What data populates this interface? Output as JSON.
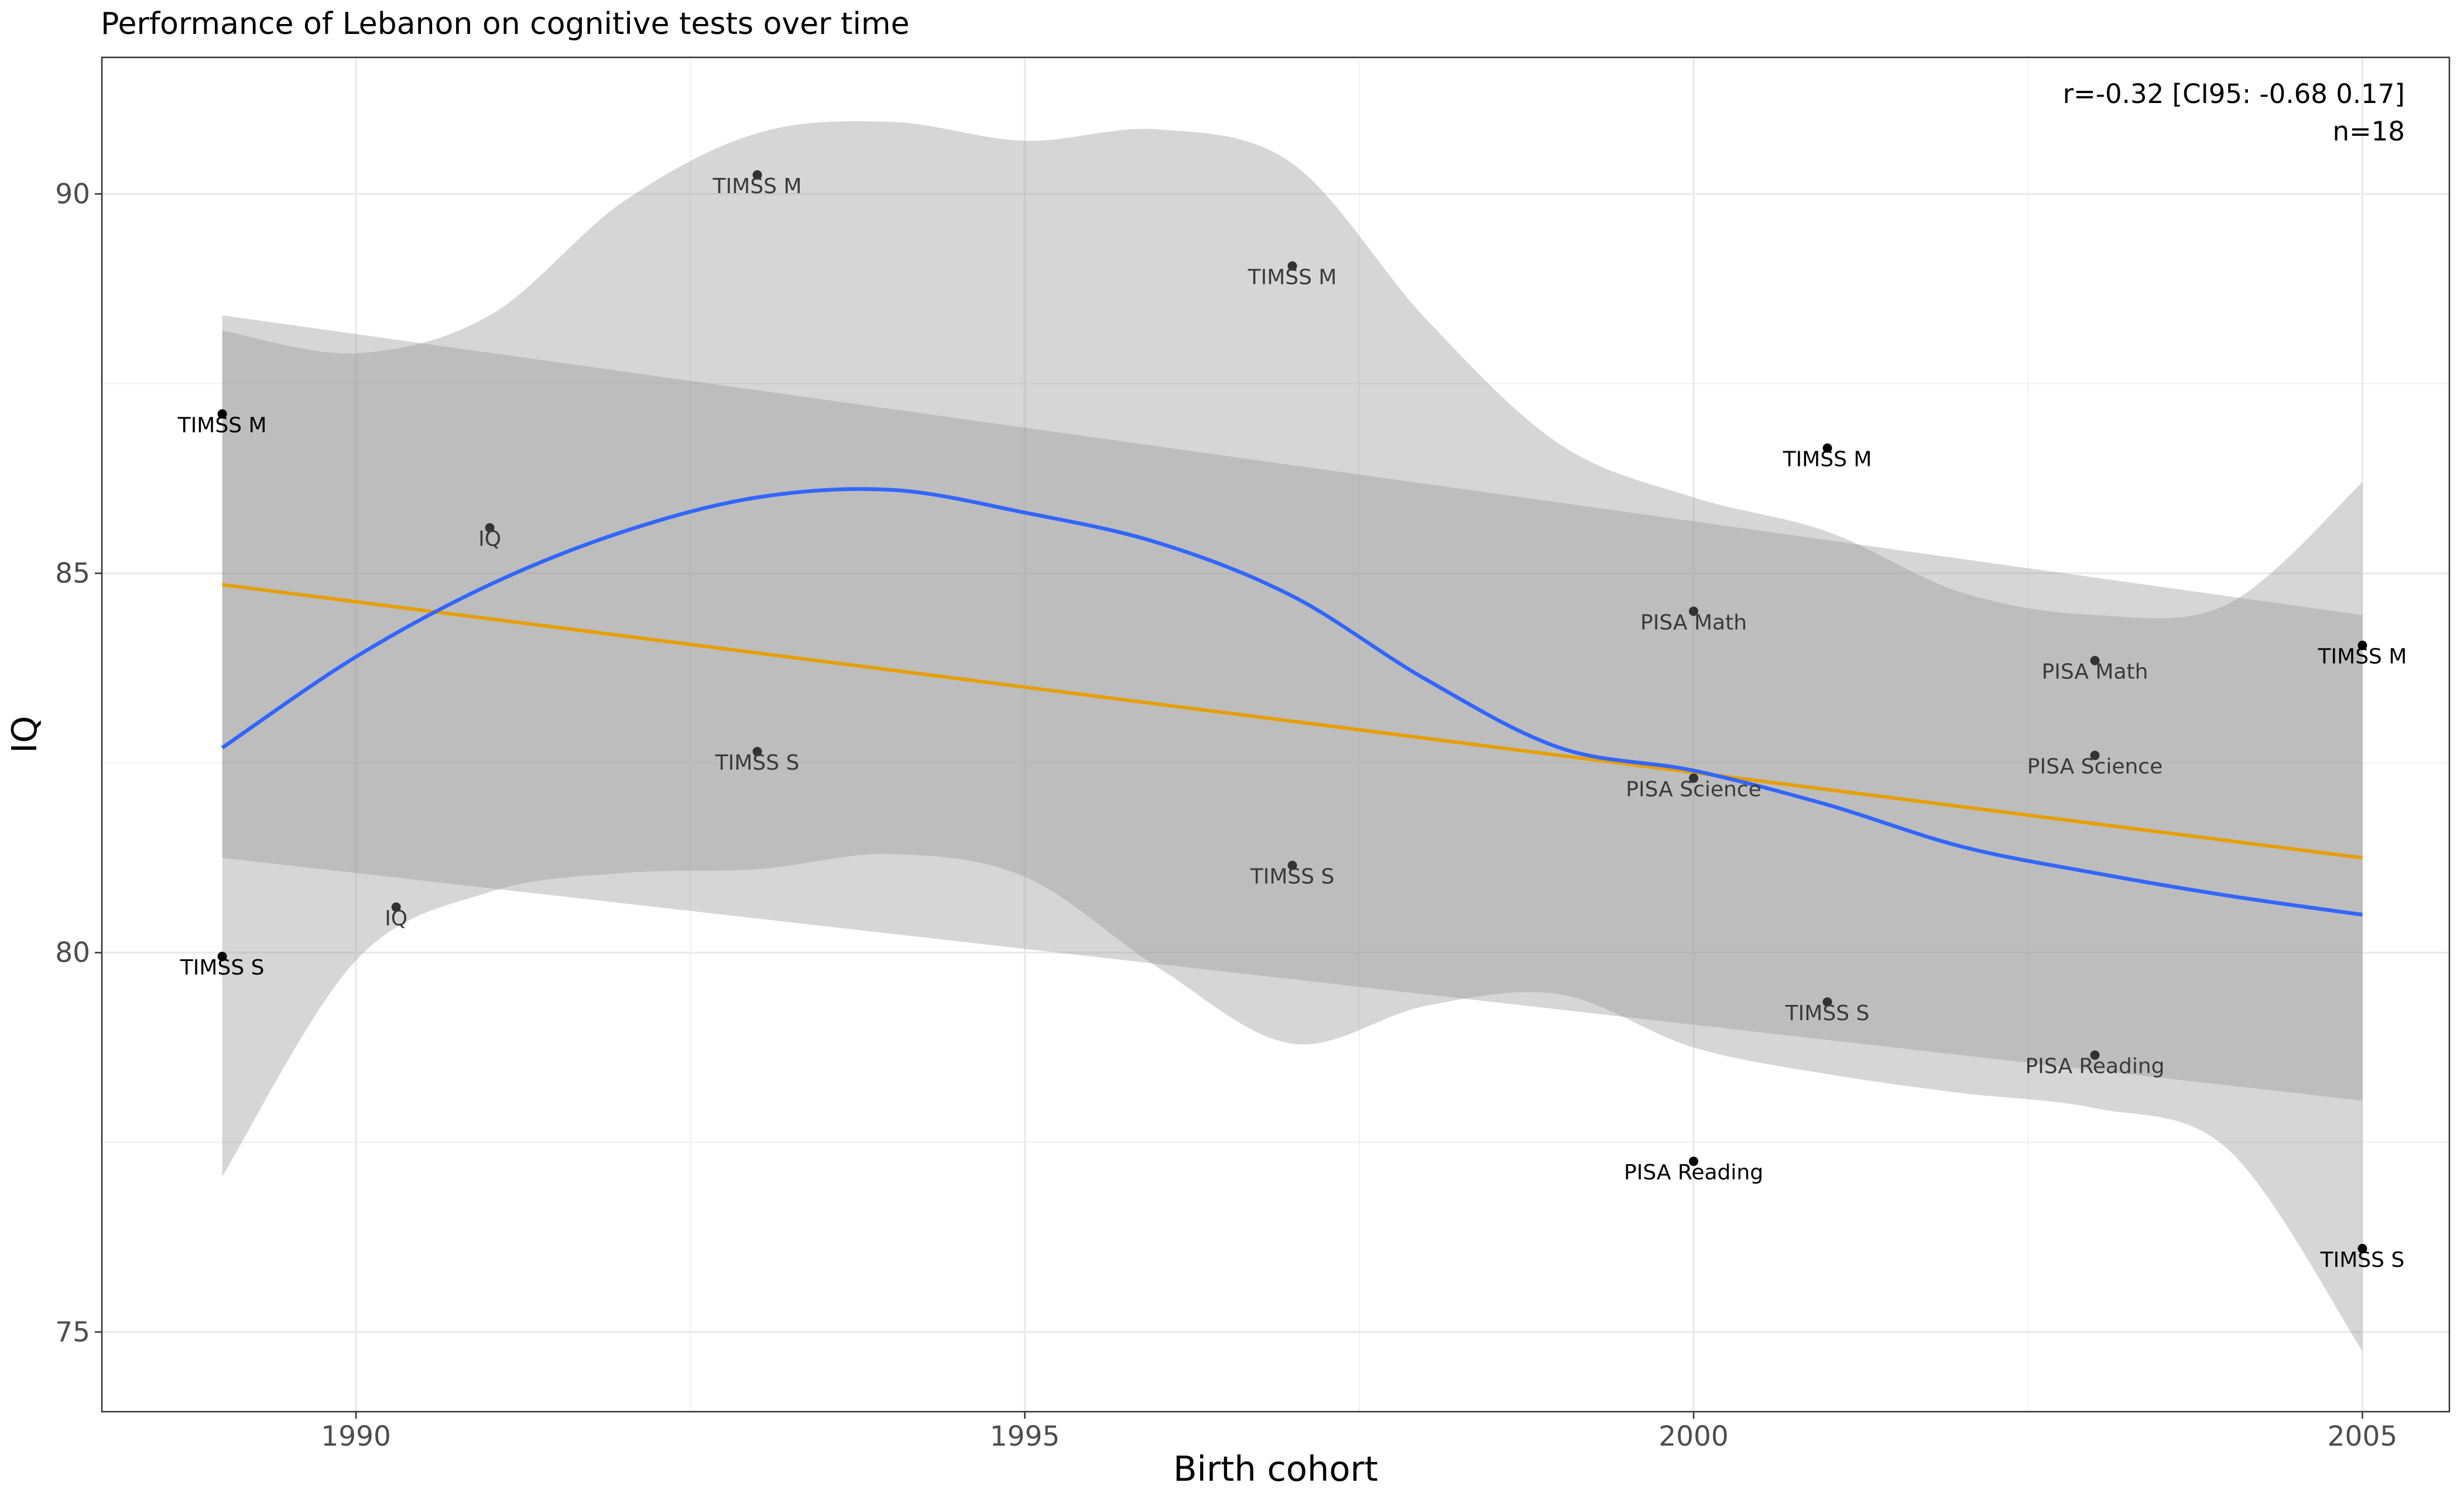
{
  "chart_data": {
    "type": "scatter",
    "title": "Performance of Lebanon on cognitive tests over time",
    "xlabel": "Birth cohort",
    "ylabel": "IQ",
    "xlim": [
      1988.1,
      2005.65
    ],
    "ylim": [
      73.95,
      91.8
    ],
    "xticks": [
      1990,
      1995,
      2000,
      2005
    ],
    "yticks": [
      75,
      80,
      85,
      90
    ],
    "grid": true,
    "annotation": [
      "r=-0.32 [CI95: -0.68 0.17]",
      "n=18"
    ],
    "points": [
      {
        "x": 1989,
        "y": 87.1,
        "label": "TIMSS M",
        "shade": "dark"
      },
      {
        "x": 1989,
        "y": 79.95,
        "label": "TIMSS S",
        "shade": "dark"
      },
      {
        "x": 1990.3,
        "y": 80.6,
        "label": "IQ",
        "shade": "mid"
      },
      {
        "x": 1991,
        "y": 85.6,
        "label": "IQ",
        "shade": "mid"
      },
      {
        "x": 1993,
        "y": 90.25,
        "label": "TIMSS M",
        "shade": "mid"
      },
      {
        "x": 1993,
        "y": 82.65,
        "label": "TIMSS S",
        "shade": "mid"
      },
      {
        "x": 1997,
        "y": 89.05,
        "label": "TIMSS M",
        "shade": "mid"
      },
      {
        "x": 1997,
        "y": 81.15,
        "label": "TIMSS S",
        "shade": "mid"
      },
      {
        "x": 2000,
        "y": 84.5,
        "label": "PISA Math",
        "shade": "mid"
      },
      {
        "x": 2000,
        "y": 82.3,
        "label": "PISA Science",
        "shade": "mid"
      },
      {
        "x": 2000,
        "y": 77.25,
        "label": "PISA Reading",
        "shade": "dark"
      },
      {
        "x": 2001,
        "y": 86.65,
        "label": "TIMSS M",
        "shade": "dark"
      },
      {
        "x": 2001,
        "y": 79.35,
        "label": "TIMSS S",
        "shade": "mid"
      },
      {
        "x": 2003,
        "y": 83.85,
        "label": "PISA Math",
        "shade": "mid"
      },
      {
        "x": 2003,
        "y": 82.6,
        "label": "PISA Science",
        "shade": "mid"
      },
      {
        "x": 2003,
        "y": 78.65,
        "label": "PISA Reading",
        "shade": "mid"
      },
      {
        "x": 2005,
        "y": 84.05,
        "label": "TIMSS M",
        "shade": "dark"
      },
      {
        "x": 2005,
        "y": 76.1,
        "label": "TIMSS S",
        "shade": "dark"
      }
    ],
    "linear_fit": {
      "color": "#E69F00",
      "x": [
        1989,
        2005
      ],
      "y": [
        84.85,
        81.25
      ],
      "band_upper": [
        88.4,
        84.45
      ],
      "band_lower": [
        81.25,
        78.05
      ]
    },
    "loess_fit": {
      "color": "#3366FF",
      "x": [
        1989,
        1990,
        1991,
        1992,
        1993,
        1994,
        1995,
        1996,
        1997,
        1998,
        1999,
        2000,
        2001,
        2002,
        2003,
        2004,
        2005
      ],
      "y": [
        82.7,
        83.9,
        84.85,
        85.55,
        86.0,
        86.1,
        85.8,
        85.4,
        84.7,
        83.6,
        82.7,
        82.4,
        81.95,
        81.4,
        81.05,
        80.75,
        80.5
      ],
      "band_upper": [
        88.2,
        87.9,
        88.4,
        89.9,
        90.8,
        90.95,
        90.7,
        90.85,
        90.4,
        88.35,
        86.7,
        86.0,
        85.55,
        84.75,
        84.45,
        84.6,
        86.2
      ],
      "band_lower": [
        77.05,
        79.9,
        80.8,
        81.05,
        81.1,
        81.3,
        81.0,
        79.8,
        78.8,
        79.3,
        79.45,
        78.75,
        78.4,
        78.15,
        77.95,
        77.4,
        74.75
      ]
    }
  }
}
